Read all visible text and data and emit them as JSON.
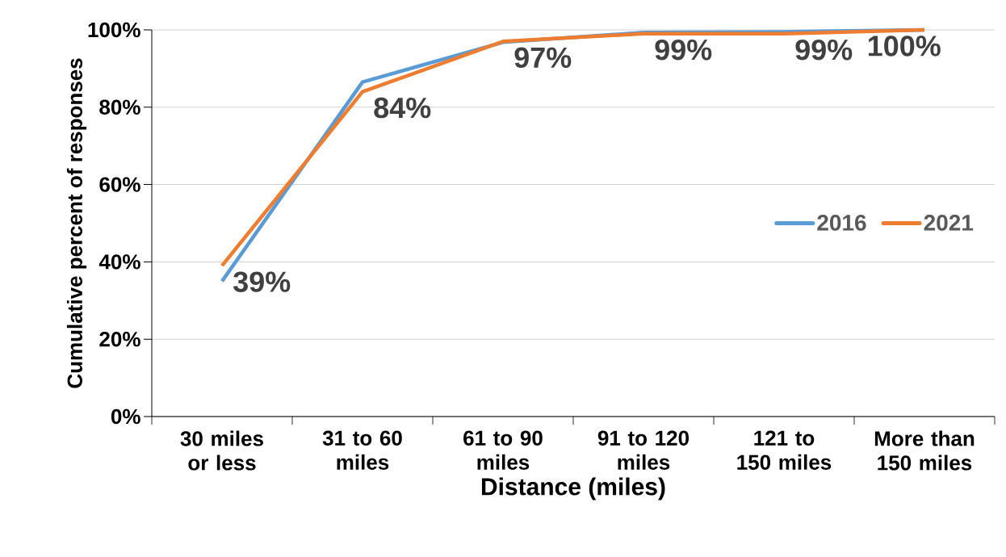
{
  "chart_data": {
    "type": "line",
    "xlabel": "Distance (miles)",
    "ylabel": "Cumulative percent of responses",
    "categories": [
      "30 miles or less",
      "31 to 60 miles",
      "61 to 90 miles",
      "91 to 120 miles",
      "121 to 150 miles",
      "More than 150 miles"
    ],
    "series": [
      {
        "name": "2016",
        "color": "#5b9bd5",
        "values": [
          35,
          86.5,
          96.8,
          99.3,
          99.5,
          100
        ]
      },
      {
        "name": "2021",
        "color": "#ed7d31",
        "values": [
          39,
          84,
          97,
          99,
          99,
          100
        ],
        "value_labels": [
          "39%",
          "84%",
          "97%",
          "99%",
          "99%",
          "100%"
        ]
      }
    ],
    "ylim": [
      0,
      100
    ],
    "yticks": [
      {
        "value": 0,
        "label": "0%"
      },
      {
        "value": 20,
        "label": "20%"
      },
      {
        "value": 40,
        "label": "40%"
      },
      {
        "value": 60,
        "label": "60%"
      },
      {
        "value": 80,
        "label": "80%"
      },
      {
        "value": 100,
        "label": "100%"
      }
    ],
    "grid": "y",
    "legend": "right",
    "marker": "none",
    "line_style": "solid"
  }
}
